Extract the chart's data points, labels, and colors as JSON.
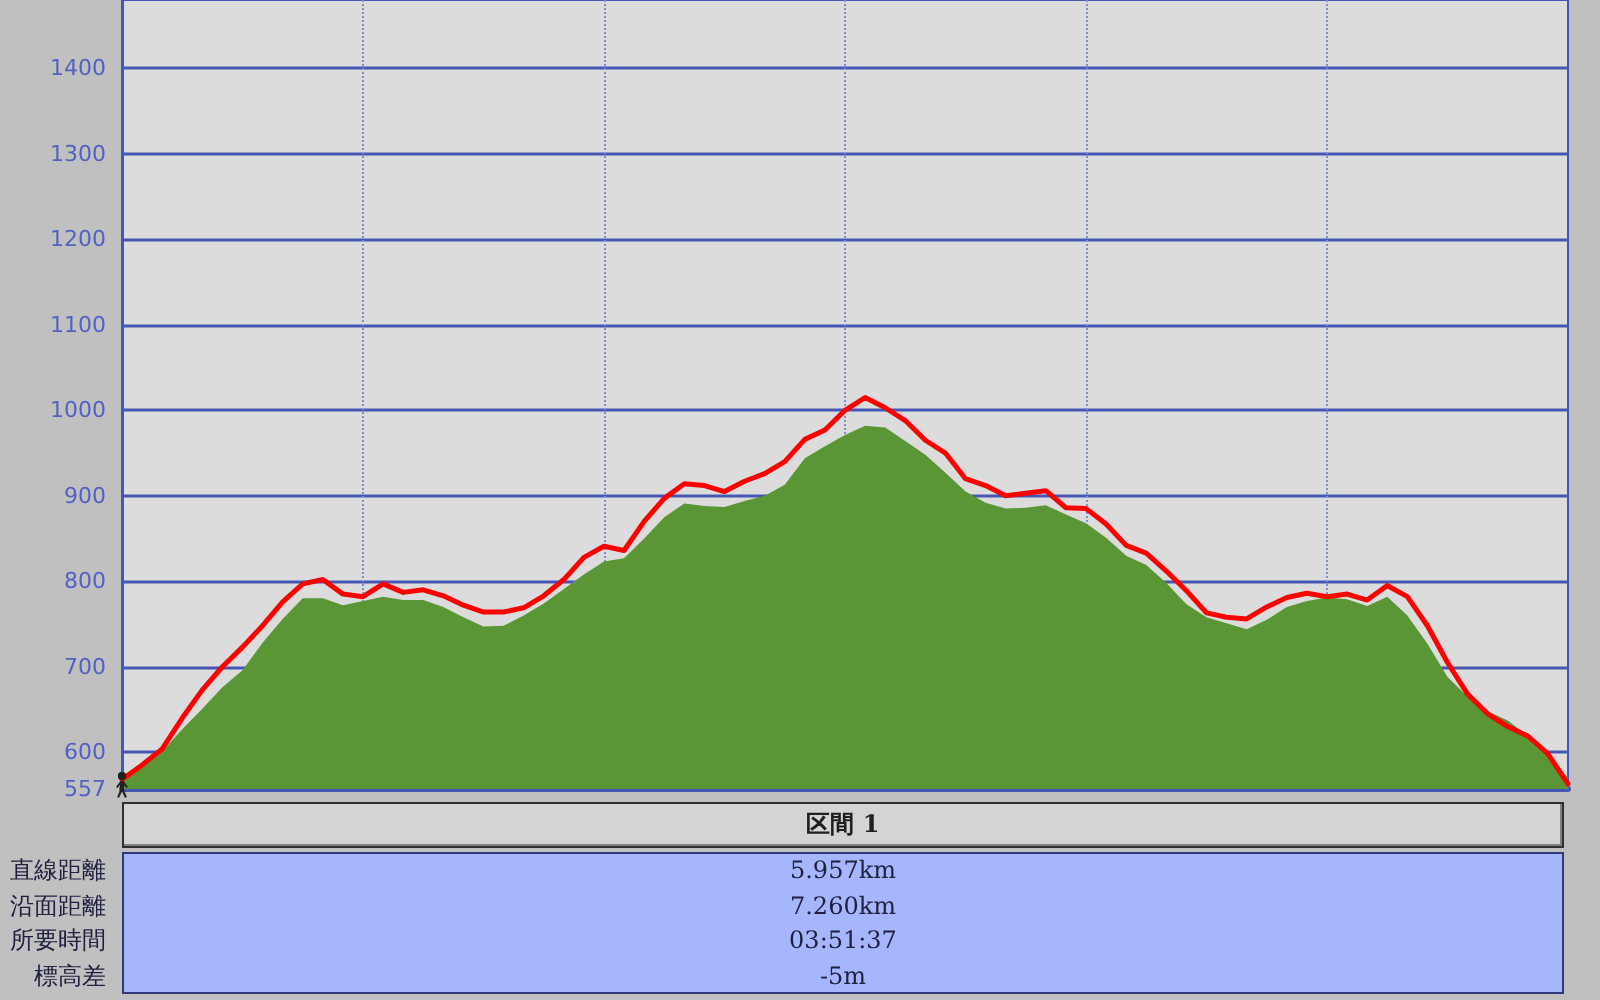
{
  "chart_data": {
    "type": "area",
    "categories": [
      null,
      null,
      null,
      null,
      null,
      null,
      null,
      null,
      null,
      null,
      null,
      null,
      null,
      null,
      null,
      null,
      null,
      null,
      null,
      null,
      null,
      null,
      null,
      null,
      null,
      null,
      null,
      null,
      null,
      null,
      null,
      null,
      null,
      null,
      null,
      null,
      null,
      null,
      null,
      null,
      null,
      null,
      null,
      null,
      null,
      null,
      null,
      null,
      null,
      null,
      null,
      null,
      null,
      null,
      null,
      null,
      null,
      null,
      null,
      null,
      null,
      null,
      null,
      null,
      null,
      null,
      null,
      null,
      null,
      null,
      null,
      null,
      null
    ],
    "series": [
      {
        "color": "#5b9636",
        "values": [
          565,
          583,
          601,
          627,
          651,
          676,
          696,
          728,
          756,
          780,
          780,
          772,
          777,
          782,
          778,
          778,
          770,
          758,
          747,
          748,
          760,
          774,
          791,
          808,
          823,
          827,
          850,
          875,
          891,
          888,
          887,
          894,
          900,
          913,
          944,
          958,
          971,
          982,
          980,
          964,
          948,
          927,
          905,
          892,
          885,
          886,
          889,
          878,
          868,
          851,
          830,
          819,
          798,
          773,
          758,
          751,
          744,
          755,
          770,
          777,
          781,
          779,
          771,
          782,
          760,
          727,
          688,
          665,
          648,
          637,
          619,
          596,
          570
        ]
      },
      {
        "type": "line",
        "color": "#ff0000",
        "values": [
          568,
          585,
          604,
          640,
          673,
          700,
          723,
          748,
          776,
          797,
          802,
          785,
          782,
          797,
          787,
          790,
          783,
          772,
          764,
          764,
          769,
          783,
          802,
          828,
          841,
          836,
          870,
          897,
          914,
          912,
          905,
          917,
          926,
          940,
          966,
          977,
          1000,
          1015,
          1003,
          988,
          965,
          950,
          920,
          912,
          900,
          903,
          906,
          886,
          885,
          867,
          842,
          833,
          812,
          789,
          763,
          758,
          756,
          770,
          781,
          786,
          782,
          785,
          778,
          795,
          782,
          748,
          705,
          668,
          645,
          630,
          619,
          598,
          563
        ]
      }
    ],
    "ylim": [
      557,
      1480
    ],
    "yticks": [
      557,
      600,
      700,
      800,
      900,
      1000,
      1100,
      1200,
      1300,
      1400
    ],
    "grid": true,
    "tick_labels": "y",
    "annotations": [
      "区間 1",
      "直線距離",
      "5.957km",
      "沿面距離",
      "7.260km",
      "所要時間",
      "03:51:37",
      "標高差",
      "-5m"
    ]
  }
}
